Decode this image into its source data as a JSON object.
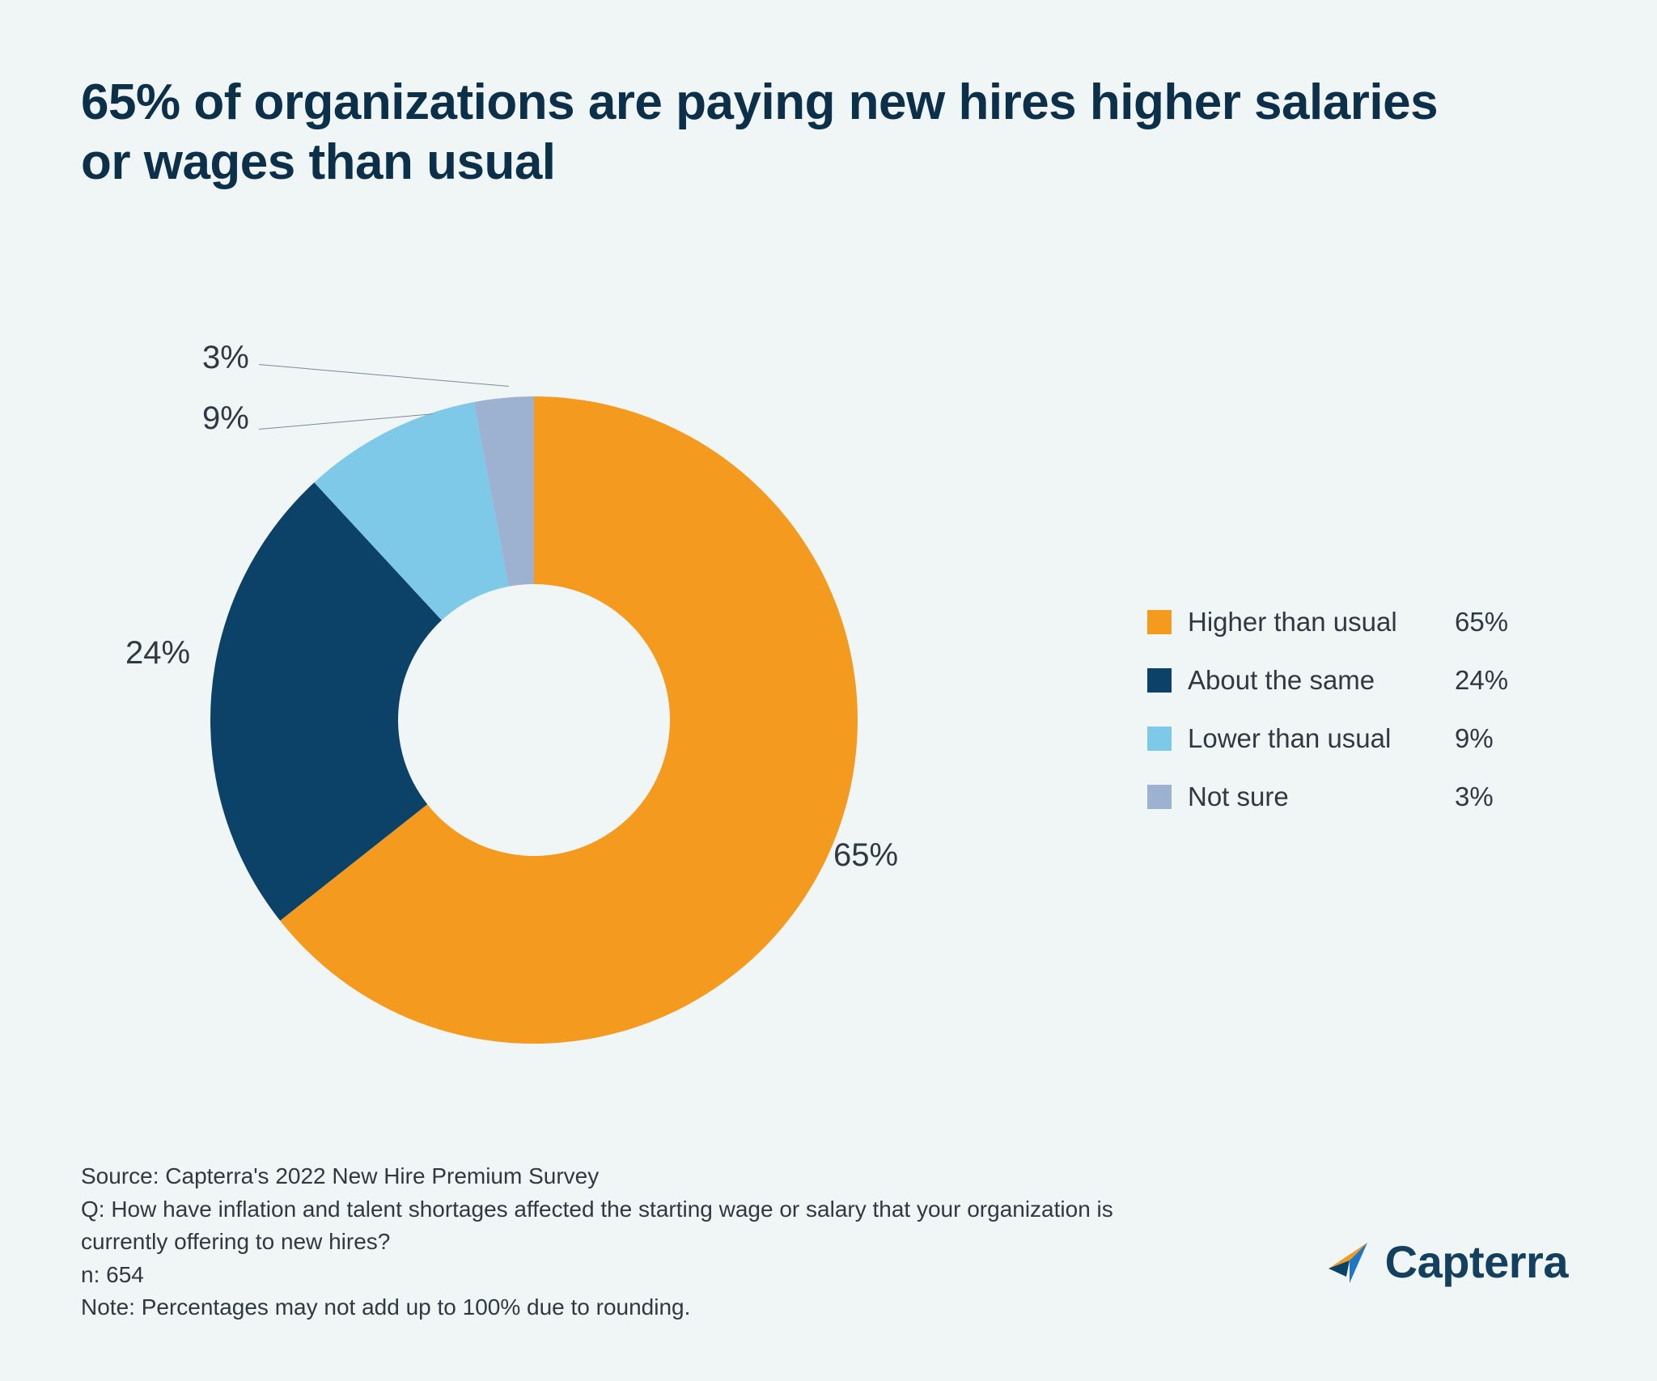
{
  "title": "65% of organizations are paying new hires higher salaries or wages than usual",
  "chart": {
    "type": "donut",
    "background_color": "#f0f5f6",
    "start_angle_deg": -90,
    "direction": "clockwise",
    "inner_radius_ratio": 0.42,
    "slices": [
      {
        "label": "Higher than usual",
        "value": 65,
        "pct": "65%",
        "color": "#f39a1f"
      },
      {
        "label": "About the same",
        "value": 24,
        "pct": "24%",
        "color": "#0c4268"
      },
      {
        "label": "Lower than usual",
        "value": 9,
        "pct": "9%",
        "color": "#7ec8e8"
      },
      {
        "label": "Not sure",
        "value": 3,
        "pct": "3%",
        "color": "#9db1d1"
      }
    ],
    "slice_label_fontsize": 40,
    "slice_label_color": "#303942",
    "leader_line_color": "#7a8a99"
  },
  "legend": {
    "swatch_size": 30,
    "fontsize": 33,
    "text_color": "#303942",
    "items": [
      {
        "label": "Higher than usual",
        "pct": "65%",
        "color": "#f39a1f"
      },
      {
        "label": "About the same",
        "pct": "24%",
        "color": "#0c4268"
      },
      {
        "label": "Lower than usual",
        "pct": "9%",
        "color": "#7ec8e8"
      },
      {
        "label": "Not sure",
        "pct": "3%",
        "color": "#9db1d1"
      }
    ]
  },
  "footer": {
    "source": "Source: Capterra's 2022 New Hire Premium Survey",
    "question": "Q: How have inflation and talent shortages affected the starting wage or salary that your organization is currently offering to new hires?",
    "n": "n: 654",
    "note": "Note: Percentages may not add up to 100% due to rounding."
  },
  "brand": {
    "name": "Capterra",
    "text_color": "#13405f",
    "logo_colors": {
      "orange": "#f39a1f",
      "blue": "#1f77c4",
      "navy": "#0c4268"
    }
  }
}
